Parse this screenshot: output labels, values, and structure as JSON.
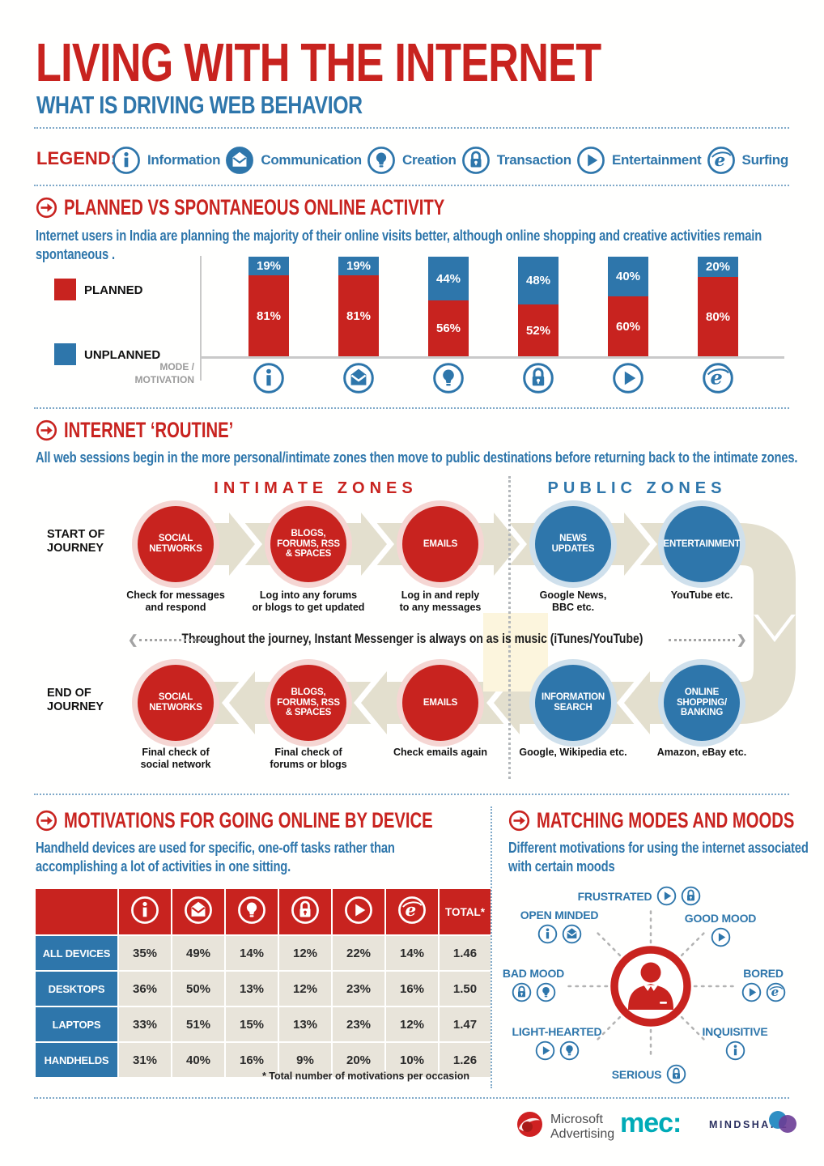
{
  "header": {
    "title": "LIVING WITH THE INTERNET",
    "subtitle": "WHAT IS DRIVING WEB BEHAVIOR"
  },
  "colors": {
    "red": "#c8231f",
    "blue": "#2e76ab",
    "band_beige": "#e3dfce",
    "cell_beige": "#e8e4da",
    "halo_pink": "#f5d6d3",
    "halo_blue": "#cfe0ec",
    "highlight_yellow": "#fcf5dd",
    "mec_teal": "#00abb7",
    "mindshare_navy": "#2b3060",
    "mindshare_blue": "#2f8fc4",
    "mindshare_purple": "#6b3d96",
    "microsoft_red": "#cf2122"
  },
  "legend": {
    "label": "LEGEND:",
    "items": [
      {
        "icon": "info-icon",
        "label": "Information"
      },
      {
        "icon": "envelope-icon",
        "label": "Communication"
      },
      {
        "icon": "bulb-icon",
        "label": "Creation"
      },
      {
        "icon": "lock-icon",
        "label": "Transaction"
      },
      {
        "icon": "play-icon",
        "label": "Entertainment"
      },
      {
        "icon": "explorer-icon",
        "label": "Surfing"
      }
    ]
  },
  "section_planned": {
    "heading": "PLANNED VS SPONTANEOUS ONLINE ACTIVITY",
    "subtitle": "Internet users in India are planning the majority of their online visits better, although online shopping and creative activities remain spontaneous .",
    "axis_label": "MODE /\nMOTIVATION"
  },
  "chart_data": [
    {
      "type": "bar",
      "stacked": true,
      "title": "PLANNED VS SPONTANEOUS ONLINE ACTIVITY",
      "categories": [
        "Information",
        "Communication",
        "Creation",
        "Transaction",
        "Entertainment",
        "Surfing"
      ],
      "category_icons": [
        "info-icon",
        "envelope-icon",
        "bulb-icon",
        "lock-icon",
        "play-icon",
        "explorer-icon"
      ],
      "series": [
        {
          "name": "PLANNED",
          "color": "#c8231f",
          "values": [
            81,
            81,
            56,
            52,
            60,
            80
          ]
        },
        {
          "name": "UNPLANNED",
          "color": "#2e76ab",
          "values": [
            19,
            19,
            44,
            48,
            40,
            20
          ]
        }
      ],
      "value_suffix": "%",
      "ylim": [
        0,
        100
      ],
      "xlabel": "MODE / MOTIVATION",
      "legend_position": "left",
      "grid": false
    },
    {
      "type": "table",
      "title": "MOTIVATIONS FOR GOING ONLINE BY DEVICE",
      "column_icons": [
        "info-icon",
        "envelope-icon",
        "bulb-icon",
        "lock-icon",
        "play-icon",
        "explorer-icon"
      ],
      "columns": [
        "Information",
        "Communication",
        "Creation",
        "Transaction",
        "Entertainment",
        "Surfing",
        "TOTAL*"
      ],
      "total_label": "TOTAL*",
      "rows": [
        {
          "label": "ALL DEVICES",
          "values": [
            "35%",
            "49%",
            "14%",
            "12%",
            "22%",
            "14%",
            "1.46"
          ]
        },
        {
          "label": "DESKTOPS",
          "values": [
            "36%",
            "50%",
            "13%",
            "12%",
            "23%",
            "16%",
            "1.50"
          ]
        },
        {
          "label": "LAPTOPS",
          "values": [
            "33%",
            "51%",
            "15%",
            "13%",
            "23%",
            "12%",
            "1.47"
          ]
        },
        {
          "label": "HANDHELDS",
          "values": [
            "31%",
            "40%",
            "16%",
            "9%",
            "20%",
            "10%",
            "1.26"
          ]
        }
      ]
    }
  ],
  "section_routine": {
    "heading": "INTERNET ‘ROUTINE’",
    "subtitle": "All web sessions begin in the more personal/intimate zones then move to public destinations before returning back to the intimate zones.",
    "zone_intimate": "INTIMATE ZONES",
    "zone_public": "PUBLIC ZONES",
    "start_label": "START OF\nJOURNEY",
    "end_label": "END OF\nJOURNEY",
    "note": "Throughout the journey, Instant Messenger is always on as is music (iTunes/YouTube)",
    "row1": [
      {
        "title": "SOCIAL\nNETWORKS",
        "caption": "Check for messages\nand respond",
        "color": "red"
      },
      {
        "title": "BLOGS,\nFORUMS, RSS\n& SPACES",
        "caption": "Log into any forums\nor blogs to get updated",
        "color": "red"
      },
      {
        "title": "EMAILS",
        "caption": "Log in and reply\nto any messages",
        "color": "red"
      },
      {
        "title": "NEWS\nUPDATES",
        "caption": "Google News,\nBBC etc.",
        "color": "blue"
      },
      {
        "title": "ENTERTAINMENT",
        "caption": "YouTube etc.",
        "color": "blue"
      }
    ],
    "row2": [
      {
        "title": "SOCIAL\nNETWORKS",
        "caption": "Final check of\nsocial network",
        "color": "red"
      },
      {
        "title": "BLOGS,\nFORUMS, RSS\n& SPACES",
        "caption": "Final check of\nforums or blogs",
        "color": "red"
      },
      {
        "title": "EMAILS",
        "caption": "Check emails again",
        "color": "red"
      },
      {
        "title": "INFORMATION\nSEARCH",
        "caption": "Google, Wikipedia etc.",
        "color": "blue"
      },
      {
        "title": "ONLINE\nSHOPPING/\nBANKING",
        "caption": "Amazon, eBay etc.",
        "color": "blue"
      }
    ]
  },
  "section_devices": {
    "heading": "MOTIVATIONS FOR GOING ONLINE BY DEVICE",
    "subtitle": "Handheld devices are used for specific, one-off tasks rather than accomplishing a lot of activities in one sitting.",
    "footnote": "* Total number of motivations per occasion"
  },
  "section_moods": {
    "heading": "MATCHING MODES AND MOODS",
    "subtitle": "Different motivations for using the internet associated with certain moods",
    "moods": [
      {
        "label": "FRUSTRATED",
        "icons": [
          "play-icon",
          "lock-icon"
        ]
      },
      {
        "label": "GOOD MOOD",
        "icons": [
          "play-icon"
        ]
      },
      {
        "label": "BORED",
        "icons": [
          "play-icon",
          "explorer-icon"
        ]
      },
      {
        "label": "INQUISITIVE",
        "icons": [
          "info-icon"
        ]
      },
      {
        "label": "SERIOUS",
        "icons": [
          "lock-icon"
        ]
      },
      {
        "label": "LIGHT-HEARTED",
        "icons": [
          "play-icon",
          "bulb-icon"
        ]
      },
      {
        "label": "BAD MOOD",
        "icons": [
          "lock-icon",
          "bulb-icon"
        ]
      },
      {
        "label": "OPEN MINDED",
        "icons": [
          "info-icon",
          "envelope-icon"
        ]
      }
    ]
  },
  "footer": {
    "microsoft_line1": "Microsoft",
    "microsoft_line2": "Advertising",
    "mec": "mec:",
    "mindshare": "MINDSHARE"
  }
}
